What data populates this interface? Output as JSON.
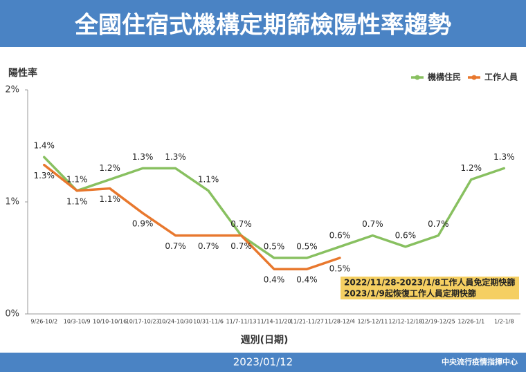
{
  "chart_data": {
    "type": "line",
    "title": "全國住宿式機構定期篩檢陽性率趨勢",
    "y_label": "陽性率",
    "x_label": "週別(日期)",
    "categories": [
      "9/26-10/2",
      "10/3-10/9",
      "10/10-10/16",
      "10/17-10/23",
      "10/24-10/30",
      "10/31-11/6",
      "11/7-11/13",
      "11/14-11/20",
      "11/21-11/27",
      "11/28-12/4",
      "12/5-12/11",
      "12/12-12/18",
      "12/19-12/25",
      "12/26-1/1",
      "1/2-1/8"
    ],
    "series": [
      {
        "name": "機構住民",
        "color": "#88c060",
        "label_side": "above",
        "values": [
          1.4,
          1.1,
          1.2,
          1.3,
          1.3,
          1.1,
          0.7,
          0.5,
          0.5,
          0.6,
          0.7,
          0.6,
          0.7,
          1.2,
          1.3
        ],
        "value_labels": [
          "1.4%",
          "1.1%",
          "1.2%",
          "1.3%",
          "1.3%",
          "1.1%",
          "0.7%",
          "0.5%",
          "0.5%",
          "0.6%",
          "0.7%",
          "0.6%",
          "0.7%",
          "1.2%",
          "1.3%"
        ]
      },
      {
        "name": "工作人員",
        "color": "#e8782e",
        "label_side": "below",
        "values": [
          1.33,
          1.1,
          1.12,
          0.9,
          0.7,
          0.7,
          0.7,
          0.4,
          0.4,
          0.5,
          null,
          null,
          null,
          null,
          null
        ],
        "value_labels": [
          "1.3%",
          "1.1%",
          "1.1%",
          "0.9%",
          "0.7%",
          "0.7%",
          "0.7%",
          "0.4%",
          "0.4%",
          "0.5%",
          null,
          null,
          null,
          null,
          null
        ]
      }
    ],
    "ylim": [
      0,
      2
    ],
    "yticks": [
      {
        "value": 0,
        "label": "0%"
      },
      {
        "value": 1,
        "label": "1%"
      },
      {
        "value": 2,
        "label": "2%"
      }
    ],
    "legend": "top-right",
    "annotations": [
      "2022/11/28-2023/1/8工作人員免定期快篩",
      "2023/1/9起恢復工作人員定期快篩"
    ],
    "date": "2023/01/12",
    "source": "中央流行疫情指揮中心"
  }
}
